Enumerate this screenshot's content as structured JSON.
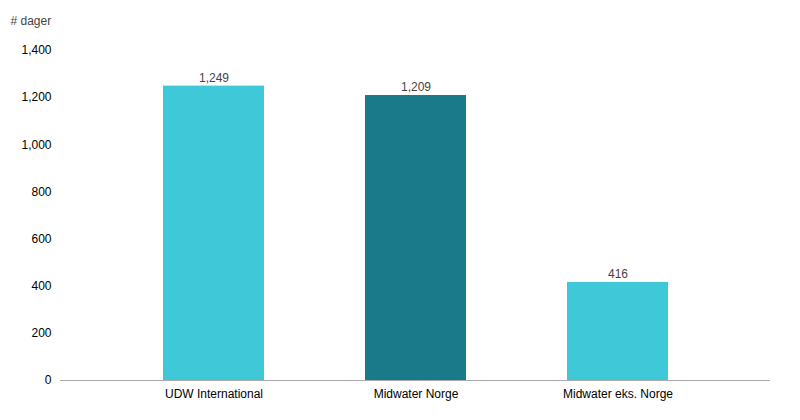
{
  "chart_data": {
    "type": "bar",
    "ylabel": "# dager",
    "categories": [
      "UDW International",
      "Midwater Norge",
      "Midwater eks. Norge"
    ],
    "values": [
      1249,
      1209,
      416
    ],
    "value_labels": [
      "1,249",
      "1,209",
      "416"
    ],
    "colors": [
      "#3ec8d8",
      "#1a7a8a",
      "#3ec8d8"
    ],
    "ylim": [
      0,
      1400
    ],
    "yticks": [
      0,
      200,
      400,
      600,
      800,
      {
        "value": 1000,
        "label": "1,000"
      },
      {
        "value": 1200,
        "label": "1,200"
      },
      {
        "value": 1400,
        "label": "1,400"
      }
    ],
    "data_labels": true,
    "grid": false
  }
}
